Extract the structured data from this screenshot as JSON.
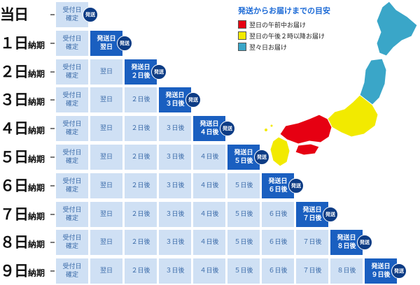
{
  "legend": {
    "title": "発送からお届けまでの目安",
    "items": [
      {
        "label": "翌日の午前中お届け",
        "color": "#e60012"
      },
      {
        "label": "翌日の午後２時以降お届け",
        "color": "#f2ea00"
      },
      {
        "label": "翌々日お届け",
        "color": "#3aa6c8"
      }
    ]
  },
  "confirm_line1": "受付日",
  "confirm_line2": "確定",
  "ship_label": "発送",
  "ship_day_line1": "発送日",
  "rows": [
    {
      "num": "当日",
      "suffix": "",
      "steps": [],
      "ship_line2": ""
    },
    {
      "num": "１日",
      "suffix": "納期",
      "steps": [],
      "ship_line2": "翌日"
    },
    {
      "num": "２日",
      "suffix": "納期",
      "steps": [
        "翌日"
      ],
      "ship_line2": "２日後"
    },
    {
      "num": "３日",
      "suffix": "納期",
      "steps": [
        "翌日",
        "２日後"
      ],
      "ship_line2": "３日後"
    },
    {
      "num": "４日",
      "suffix": "納期",
      "steps": [
        "翌日",
        "２日後",
        "３日後"
      ],
      "ship_line2": "４日後"
    },
    {
      "num": "５日",
      "suffix": "納期",
      "steps": [
        "翌日",
        "２日後",
        "３日後",
        "４日後"
      ],
      "ship_line2": "５日後"
    },
    {
      "num": "６日",
      "suffix": "納期",
      "steps": [
        "翌日",
        "２日後",
        "３日後",
        "４日後",
        "５日後"
      ],
      "ship_line2": "６日後"
    },
    {
      "num": "７日",
      "suffix": "納期",
      "steps": [
        "翌日",
        "２日後",
        "３日後",
        "４日後",
        "５日後",
        "６日後"
      ],
      "ship_line2": "７日後"
    },
    {
      "num": "８日",
      "suffix": "納期",
      "steps": [
        "翌日",
        "２日後",
        "３日後",
        "４日後",
        "５日後",
        "６日後",
        "７日後"
      ],
      "ship_line2": "８日後"
    },
    {
      "num": "９日",
      "suffix": "納期",
      "steps": [
        "翌日",
        "２日後",
        "３日後",
        "４日後",
        "５日後",
        "６日後",
        "７日後",
        "８日後"
      ],
      "ship_line2": "９日後"
    }
  ]
}
